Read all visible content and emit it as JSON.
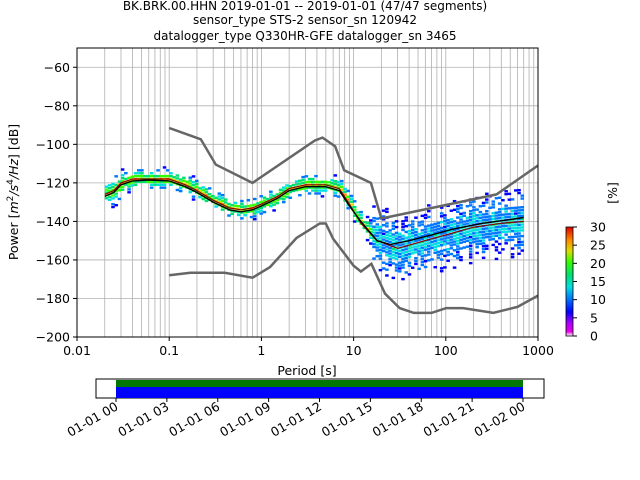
{
  "chart_data": {
    "type": "heatmap",
    "title_lines": [
      "BK.BRK.00.HHN   2019-01-01 -- 2019-01-01  (47/47 segments)",
      "sensor_type STS-2 sensor_sn 120942",
      "datalogger_type Q330HR-GFE datalogger_sn 3465"
    ],
    "xlabel": "Period [s]",
    "ylabel_parts": {
      "pre": "Power [",
      "m": "m",
      "two": "2",
      "s": "/s",
      "four": "4",
      "hz": "/Hz",
      "post": "] [dB]"
    },
    "x_scale": "log",
    "xlim": [
      0.01,
      1000
    ],
    "ylim": [
      -200,
      -50
    ],
    "x_ticks": [
      {
        "v": 0.01,
        "label": "0.01"
      },
      {
        "v": 0.1,
        "label": "0.1"
      },
      {
        "v": 1,
        "label": "1"
      },
      {
        "v": 10,
        "label": "10"
      },
      {
        "v": 100,
        "label": "100"
      },
      {
        "v": 1000,
        "label": "1000"
      }
    ],
    "y_ticks": [
      {
        "v": -60,
        "label": "−60"
      },
      {
        "v": -80,
        "label": "−80"
      },
      {
        "v": -100,
        "label": "−100"
      },
      {
        "v": -120,
        "label": "−120"
      },
      {
        "v": -140,
        "label": "−140"
      },
      {
        "v": -160,
        "label": "−160"
      },
      {
        "v": -180,
        "label": "−180"
      },
      {
        "v": -200,
        "label": "−200"
      }
    ],
    "grid": true,
    "nhnm": [
      [
        0.1,
        -91.5
      ],
      [
        0.22,
        -97.4
      ],
      [
        0.32,
        -110.5
      ],
      [
        0.8,
        -120
      ],
      [
        3.8,
        -98
      ],
      [
        4.6,
        -96.5
      ],
      [
        6.3,
        -101
      ],
      [
        7.9,
        -113.5
      ],
      [
        15.4,
        -120
      ],
      [
        20,
        -138.5
      ],
      [
        354.8,
        -126
      ],
      [
        1000,
        -111
      ]
    ],
    "nlnm": [
      [
        0.1,
        -168
      ],
      [
        0.17,
        -166.7
      ],
      [
        0.4,
        -166.7
      ],
      [
        0.8,
        -169.2
      ],
      [
        1.24,
        -163.7
      ],
      [
        2.4,
        -148.6
      ],
      [
        4.3,
        -141.1
      ],
      [
        5,
        -141.1
      ],
      [
        6,
        -149
      ],
      [
        10,
        -163
      ],
      [
        12,
        -166
      ],
      [
        15.6,
        -162
      ],
      [
        21.9,
        -177.5
      ],
      [
        31.6,
        -185
      ],
      [
        45,
        -187.5
      ],
      [
        70,
        -187.5
      ],
      [
        101,
        -185
      ],
      [
        154,
        -185
      ],
      [
        328,
        -187.5
      ],
      [
        600,
        -184.4
      ],
      [
        1000,
        -178.5
      ]
    ],
    "mean_curve": [
      [
        0.02,
        -127
      ],
      [
        0.025,
        -125
      ],
      [
        0.03,
        -121
      ],
      [
        0.04,
        -119
      ],
      [
        0.06,
        -118.5
      ],
      [
        0.1,
        -119
      ],
      [
        0.15,
        -122
      ],
      [
        0.2,
        -125
      ],
      [
        0.3,
        -130
      ],
      [
        0.45,
        -134
      ],
      [
        0.6,
        -135
      ],
      [
        0.8,
        -134
      ],
      [
        1,
        -132
      ],
      [
        1.5,
        -128
      ],
      [
        2,
        -124
      ],
      [
        3,
        -122
      ],
      [
        5,
        -122
      ],
      [
        7,
        -124
      ],
      [
        9,
        -132
      ],
      [
        12,
        -140
      ],
      [
        18,
        -150
      ],
      [
        25,
        -152
      ],
      [
        40,
        -150
      ],
      [
        70,
        -147
      ],
      [
        120,
        -144
      ],
      [
        250,
        -141
      ],
      [
        500,
        -139
      ],
      [
        700,
        -138
      ]
    ],
    "mode_curve": [
      [
        0.02,
        -126
      ],
      [
        0.025,
        -124
      ],
      [
        0.03,
        -120
      ],
      [
        0.04,
        -118
      ],
      [
        0.06,
        -118
      ],
      [
        0.1,
        -118
      ],
      [
        0.15,
        -121
      ],
      [
        0.2,
        -124
      ],
      [
        0.3,
        -129
      ],
      [
        0.45,
        -133
      ],
      [
        0.6,
        -134
      ],
      [
        0.8,
        -133
      ],
      [
        1,
        -131
      ],
      [
        1.5,
        -127
      ],
      [
        2,
        -123
      ],
      [
        3,
        -121
      ],
      [
        5,
        -121
      ],
      [
        7,
        -123
      ],
      [
        9,
        -131
      ],
      [
        12,
        -141
      ],
      [
        18,
        -150
      ],
      [
        30,
        -154
      ],
      [
        50,
        -151
      ],
      [
        100,
        -147
      ],
      [
        200,
        -143
      ],
      [
        400,
        -141
      ],
      [
        700,
        -140
      ]
    ],
    "colorbar": {
      "label": "[%]",
      "min": 0,
      "max": 30,
      "ticks": [
        0,
        5,
        10,
        15,
        20,
        25,
        30
      ],
      "colormap": "pqlx"
    },
    "timeline": {
      "ticks": [
        "01-01 00",
        "01-01 03",
        "01-01 06",
        "01-01 09",
        "01-01 12",
        "01-01 15",
        "01-01 18",
        "01-01 21",
        "01-02 00"
      ],
      "coverage_color": "#007700",
      "data_color": "#0000ff"
    },
    "colors": {
      "nhnm": "#666666",
      "mean": "#000000",
      "mode": "#8b0000",
      "grid": "#b0b0b0"
    }
  }
}
